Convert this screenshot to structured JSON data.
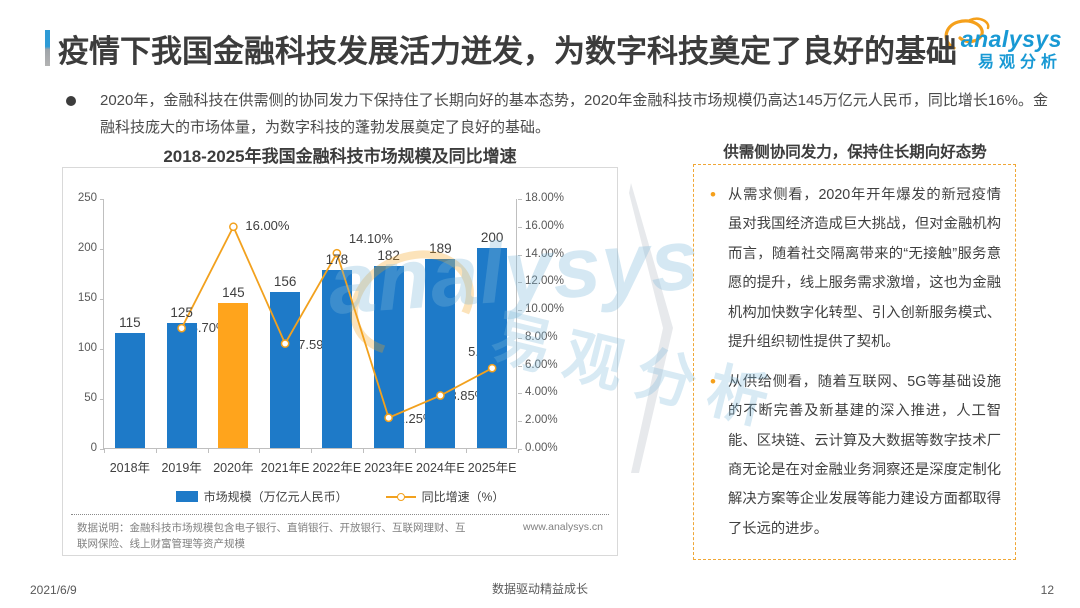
{
  "page": {
    "title": "疫情下我国金融科技发展活力迸发，为数字科技奠定了良好的基础",
    "footer": {
      "date": "2021/6/9",
      "slogan": "数据驱动精益成长",
      "page_number": "12"
    }
  },
  "logo": {
    "brand": "analysys",
    "brand_cn": "易观分析",
    "accent_color": "#1899d4",
    "swirl_color": "#f5a01b"
  },
  "intro": {
    "bullet_text": "2020年，金融科技在供需侧的协同发力下保持住了长期向好的基本态势，2020年金融科技市场规模仍高达145万亿元人民币，同比增长16%。金融科技庞大的市场体量，为数字科技的蓬勃发展奠定了良好的基础。"
  },
  "chart_data": {
    "type": "bar+line",
    "title": "2018-2025年我国金融科技市场规模及同比增速",
    "categories": [
      "2018年",
      "2019年",
      "2020年",
      "2021年E",
      "2022年E",
      "2023年E",
      "2024年E",
      "2025年E"
    ],
    "series": [
      {
        "name": "市场规模（万亿元人民币）",
        "type": "bar",
        "axis": "left",
        "values": [
          115,
          125,
          145,
          156,
          178,
          182,
          189,
          200
        ],
        "color": "#1e7ac8",
        "highlight_index": 2,
        "highlight_color": "#ffa41c"
      },
      {
        "name": "同比增速（%）",
        "type": "line",
        "axis": "right",
        "values": [
          null,
          8.7,
          16.0,
          7.59,
          14.1,
          2.25,
          3.85,
          5.82
        ],
        "point_labels": [
          null,
          "8.70%",
          "16.00%",
          "7.59%",
          "14.10%",
          "2.25%",
          "3.85%",
          "5.82%"
        ],
        "color": "#f2a11e",
        "marker": "circle-white-fill"
      }
    ],
    "left_axis": {
      "min": 0,
      "max": 250,
      "step": 50,
      "ticks": [
        "250",
        "200",
        "150",
        "100",
        "50",
        "0"
      ]
    },
    "right_axis": {
      "min": 0,
      "max": 18,
      "step": 2,
      "ticks": [
        "18.00%",
        "16.00%",
        "14.00%",
        "12.00%",
        "10.00%",
        "8.00%",
        "6.00%",
        "4.00%",
        "2.00%",
        "0.00%"
      ]
    },
    "grid": false,
    "legend_position": "bottom",
    "footnote": "数据说明：金融科技市场规模包含电子银行、直销银行、开放银行、互联网理财、互联网保险、线上财富管理等资产规模",
    "source_url": "www.analysys.cn"
  },
  "right_panel": {
    "header": "供需侧协同发力，保持住长期向好态势",
    "bullets": [
      "从需求侧看，2020年开年爆发的新冠疫情虽对我国经济造成巨大挑战，但对金融机构而言，随着社交隔离带来的“无接触”服务意愿的提升，线上服务需求激增，这也为金融机构加快数字化转型、引入创新服务模式、提升组织韧性提供了契机。",
      "从供给侧看，随着互联网、5G等基础设施的不断完善及新基建的深入推进，人工智能、区块链、云计算及大数据等数字技术厂商无论是在对金融业务洞察还是深度定制化解决方案等企业发展等能力建设方面都取得了长远的进步。"
    ]
  },
  "watermark": {
    "text_en": "analysys",
    "text_cn": "易观分析"
  }
}
